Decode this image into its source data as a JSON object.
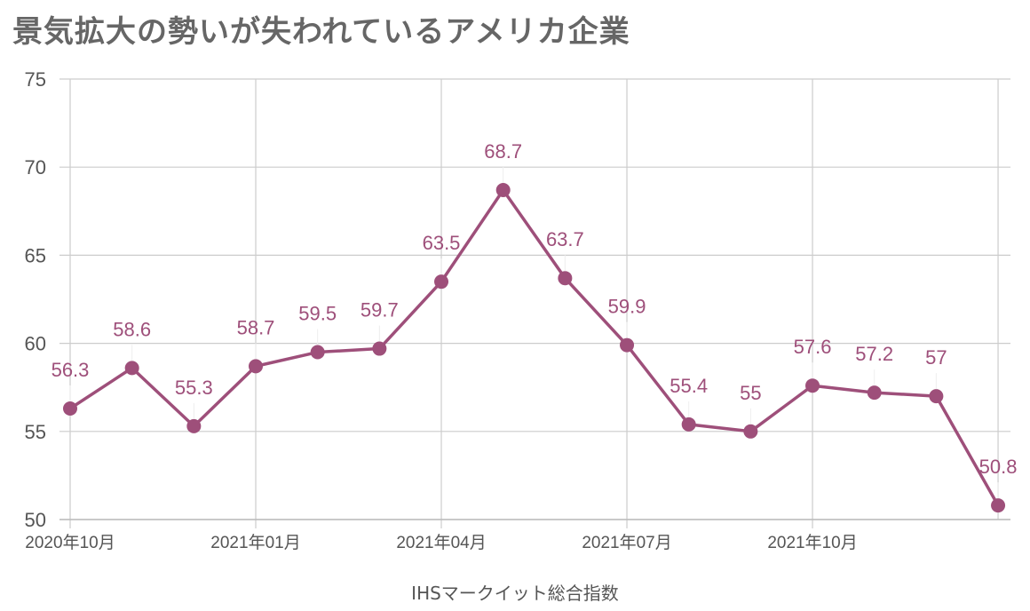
{
  "chart_data": {
    "type": "line",
    "title": "景気拡大の勢いが失われているアメリカ企業",
    "xlabel": "IHSマークイット総合指数",
    "ylabel": "",
    "categories": [
      "2020年10月",
      "2020年11月",
      "2020年12月",
      "2021年01月",
      "2021年02月",
      "2021年03月",
      "2021年04月",
      "2021年05月",
      "2021年06月",
      "2021年07月",
      "2021年08月",
      "2021年09月",
      "2021年10月",
      "2021年11月",
      "2021年12月",
      "2022年01月"
    ],
    "x_tick_labels": [
      "2020年10月",
      "2021年01月",
      "2021年04月",
      "2021年07月",
      "2021年10月"
    ],
    "y_ticks": [
      "50",
      "55",
      "60",
      "65",
      "70",
      "75"
    ],
    "series": [
      {
        "values": [
          56.3,
          58.6,
          55.3,
          58.7,
          59.5,
          59.7,
          63.5,
          68.7,
          63.7,
          59.9,
          55.4,
          55,
          57.6,
          57.2,
          57,
          50.8
        ],
        "labels": [
          "56.3",
          "58.6",
          "55.3",
          "58.7",
          "59.5",
          "59.7",
          "63.5",
          "68.7",
          "63.7",
          "59.9",
          "55.4",
          "55",
          "57.6",
          "57.2",
          "57",
          "50.8"
        ],
        "color": "#9e4f7a"
      }
    ],
    "ylim": [
      50,
      75
    ],
    "grid": true,
    "legend": "none"
  }
}
